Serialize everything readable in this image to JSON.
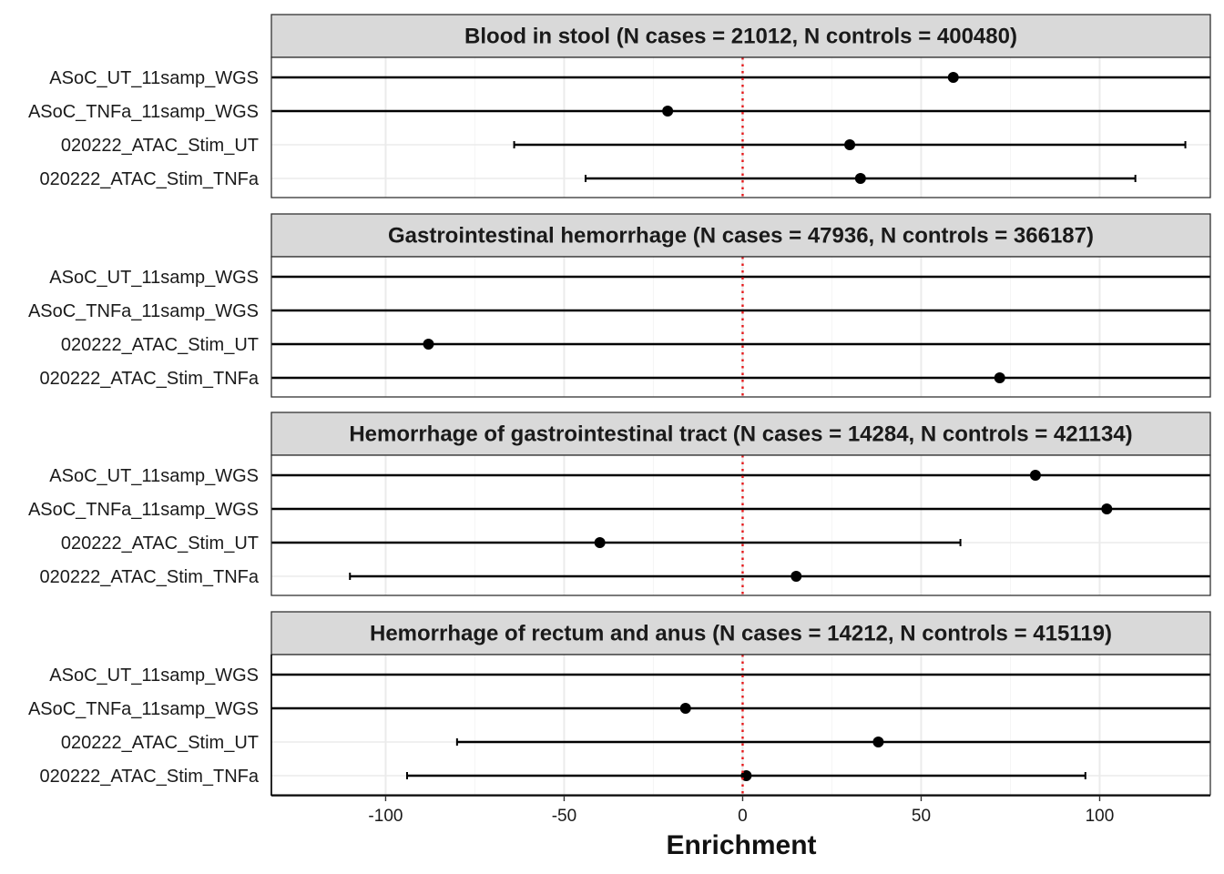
{
  "chart_data": {
    "type": "forest",
    "xlabel": "Enrichment",
    "xlim": [
      -132,
      131
    ],
    "x_ticks": [
      -100,
      -50,
      0,
      50,
      100
    ],
    "x_tick_labels": [
      "-100",
      "-50",
      "0",
      "50",
      "100"
    ],
    "reference_line": {
      "x": 0,
      "style": "dotted",
      "color": "#e41a1c"
    },
    "grid": true,
    "colors": {
      "point": "#000000",
      "strip_fill": "#d9d9d9",
      "grid": "#ebebeb",
      "frame": "#333333"
    },
    "row_labels": [
      "ASoC_UT_11samp_WGS",
      "ASoC_TNFa_11samp_WGS",
      "020222_ATAC_Stim_UT",
      "020222_ATAC_Stim_TNFa"
    ],
    "panels": [
      {
        "title": "Blood in stool (N cases = 21012, N controls = 400480)",
        "rows": [
          {
            "label": "ASoC_UT_11samp_WGS",
            "estimate": 59,
            "lower": null,
            "upper": null
          },
          {
            "label": "ASoC_TNFa_11samp_WGS",
            "estimate": -21,
            "lower": null,
            "upper": null
          },
          {
            "label": "020222_ATAC_Stim_UT",
            "estimate": 30,
            "lower": -64,
            "upper": 124
          },
          {
            "label": "020222_ATAC_Stim_TNFa",
            "estimate": 33,
            "lower": -44,
            "upper": 110
          }
        ]
      },
      {
        "title": "Gastrointestinal hemorrhage (N cases = 47936, N controls = 366187)",
        "rows": [
          {
            "label": "ASoC_UT_11samp_WGS",
            "estimate": null,
            "lower": null,
            "upper": null
          },
          {
            "label": "ASoC_TNFa_11samp_WGS",
            "estimate": null,
            "lower": null,
            "upper": null
          },
          {
            "label": "020222_ATAC_Stim_UT",
            "estimate": -88,
            "lower": null,
            "upper": null
          },
          {
            "label": "020222_ATAC_Stim_TNFa",
            "estimate": 72,
            "lower": null,
            "upper": null
          }
        ]
      },
      {
        "title": "Hemorrhage of gastrointestinal tract (N cases = 14284, N controls = 421134)",
        "rows": [
          {
            "label": "ASoC_UT_11samp_WGS",
            "estimate": 82,
            "lower": null,
            "upper": null
          },
          {
            "label": "ASoC_TNFa_11samp_WGS",
            "estimate": 102,
            "lower": null,
            "upper": null
          },
          {
            "label": "020222_ATAC_Stim_UT",
            "estimate": -40,
            "lower": null,
            "upper": 61
          },
          {
            "label": "020222_ATAC_Stim_TNFa",
            "estimate": 15,
            "lower": -110,
            "upper": null
          }
        ]
      },
      {
        "title": "Hemorrhage of rectum and anus (N cases = 14212, N controls = 415119)",
        "rows": [
          {
            "label": "ASoC_UT_11samp_WGS",
            "estimate": null,
            "lower": null,
            "upper": null
          },
          {
            "label": "ASoC_TNFa_11samp_WGS",
            "estimate": -16,
            "lower": null,
            "upper": null
          },
          {
            "label": "020222_ATAC_Stim_UT",
            "estimate": 38,
            "lower": -80,
            "upper": null
          },
          {
            "label": "020222_ATAC_Stim_TNFa",
            "estimate": 1,
            "lower": -94,
            "upper": 96
          }
        ]
      }
    ]
  }
}
